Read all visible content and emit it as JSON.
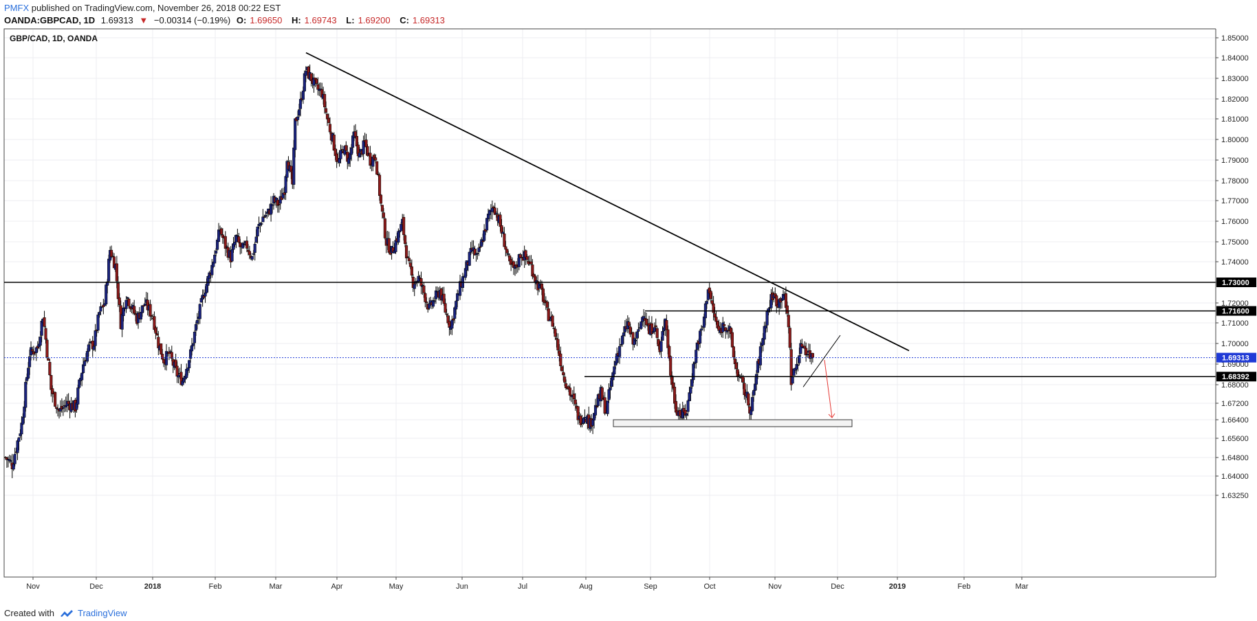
{
  "header": {
    "publisher": "PMFX",
    "published_text": " published on TradingView.com, November 26, 2018 00:22 EST",
    "symbol": "OANDA:GBPCAD, 1D",
    "last": "1.69313",
    "change": "−0.00314 (−0.19%)",
    "o_label": "O:",
    "o_value": "1.69650",
    "h_label": "H:",
    "h_value": "1.69743",
    "l_label": "L:",
    "l_value": "1.69200",
    "c_label": "C:",
    "c_value": "1.69313"
  },
  "footer": {
    "created_with": "Created with",
    "brand": "TradingView"
  },
  "colors": {
    "bull": "#1a237e",
    "bear": "#8b1a1a",
    "current_price": "#1f3ad6",
    "line": "#000000",
    "arrow": "#e53935"
  },
  "chart_data": {
    "type": "candlestick",
    "title": "GBP/CAD, 1D, OANDA",
    "x_ticks": [
      "Nov",
      "Dec",
      "2018",
      "Feb",
      "Mar",
      "Apr",
      "May",
      "Jun",
      "Jul",
      "Aug",
      "Sep",
      "Oct",
      "Nov",
      "Dec",
      "2019",
      "Feb",
      "Mar"
    ],
    "y_ticks": [
      "1.85000",
      "1.84000",
      "1.83000",
      "1.82000",
      "1.81000",
      "1.80000",
      "1.79000",
      "1.78000",
      "1.77000",
      "1.76000",
      "1.75000",
      "1.74000",
      "1.73000",
      "1.72000",
      "1.71000",
      "1.70000",
      "1.69000",
      "1.68000",
      "1.67200",
      "1.66400",
      "1.65600",
      "1.64800",
      "1.64000",
      "1.63250"
    ],
    "ylim": [
      1.63,
      1.852
    ],
    "price_labels": [
      "1.73000",
      "1.71600",
      "1.69313",
      "1.68392"
    ],
    "current_price": 1.69313,
    "grid": true,
    "path": [
      [
        0,
        1.648
      ],
      [
        5,
        1.645
      ],
      [
        12,
        1.662
      ],
      [
        18,
        1.695
      ],
      [
        24,
        1.698
      ],
      [
        28,
        1.714
      ],
      [
        34,
        1.678
      ],
      [
        40,
        1.668
      ],
      [
        46,
        1.672
      ],
      [
        52,
        1.67
      ],
      [
        58,
        1.69
      ],
      [
        62,
        1.698
      ],
      [
        66,
        1.7
      ],
      [
        70,
        1.715
      ],
      [
        74,
        1.72
      ],
      [
        78,
        1.746
      ],
      [
        82,
        1.738
      ],
      [
        86,
        1.71
      ],
      [
        90,
        1.724
      ],
      [
        94,
        1.718
      ],
      [
        98,
        1.712
      ],
      [
        104,
        1.72
      ],
      [
        110,
        1.713
      ],
      [
        114,
        1.7
      ],
      [
        118,
        1.692
      ],
      [
        122,
        1.695
      ],
      [
        128,
        1.685
      ],
      [
        132,
        1.682
      ],
      [
        138,
        1.695
      ],
      [
        142,
        1.708
      ],
      [
        148,
        1.725
      ],
      [
        154,
        1.738
      ],
      [
        160,
        1.756
      ],
      [
        164,
        1.748
      ],
      [
        168,
        1.742
      ],
      [
        172,
        1.752
      ],
      [
        176,
        1.746
      ],
      [
        180,
        1.748
      ],
      [
        184,
        1.742
      ],
      [
        188,
        1.756
      ],
      [
        192,
        1.762
      ],
      [
        196,
        1.764
      ],
      [
        200,
        1.77
      ],
      [
        204,
        1.768
      ],
      [
        208,
        1.776
      ],
      [
        210,
        1.792
      ],
      [
        214,
        1.778
      ],
      [
        216,
        1.808
      ],
      [
        220,
        1.818
      ],
      [
        224,
        1.834
      ],
      [
        228,
        1.83
      ],
      [
        232,
        1.825
      ],
      [
        236,
        1.823
      ],
      [
        240,
        1.81
      ],
      [
        244,
        1.8
      ],
      [
        248,
        1.788
      ],
      [
        252,
        1.796
      ],
      [
        256,
        1.79
      ],
      [
        260,
        1.802
      ],
      [
        264,
        1.792
      ],
      [
        268,
        1.798
      ],
      [
        272,
        1.79
      ],
      [
        276,
        1.792
      ],
      [
        280,
        1.768
      ],
      [
        284,
        1.75
      ],
      [
        288,
        1.745
      ],
      [
        292,
        1.752
      ],
      [
        296,
        1.759
      ],
      [
        300,
        1.74
      ],
      [
        304,
        1.73
      ],
      [
        308,
        1.732
      ],
      [
        312,
        1.725
      ],
      [
        316,
        1.717
      ],
      [
        320,
        1.722
      ],
      [
        324,
        1.726
      ],
      [
        328,
        1.716
      ],
      [
        332,
        1.708
      ],
      [
        336,
        1.72
      ],
      [
        340,
        1.73
      ],
      [
        344,
        1.738
      ],
      [
        348,
        1.746
      ],
      [
        352,
        1.742
      ],
      [
        356,
        1.752
      ],
      [
        360,
        1.762
      ],
      [
        364,
        1.768
      ],
      [
        368,
        1.76
      ],
      [
        372,
        1.75
      ],
      [
        376,
        1.738
      ],
      [
        380,
        1.736
      ],
      [
        384,
        1.744
      ],
      [
        388,
        1.742
      ],
      [
        392,
        1.738
      ],
      [
        396,
        1.73
      ],
      [
        400,
        1.725
      ],
      [
        404,
        1.715
      ],
      [
        408,
        1.71
      ],
      [
        412,
        1.698
      ],
      [
        416,
        1.685
      ],
      [
        420,
        1.678
      ],
      [
        424,
        1.672
      ],
      [
        428,
        1.664
      ],
      [
        432,
        1.667
      ],
      [
        436,
        1.662
      ],
      [
        440,
        1.67
      ],
      [
        444,
        1.676
      ],
      [
        448,
        1.668
      ],
      [
        452,
        1.682
      ],
      [
        456,
        1.695
      ],
      [
        460,
        1.702
      ],
      [
        464,
        1.71
      ],
      [
        468,
        1.7
      ],
      [
        472,
        1.705
      ],
      [
        476,
        1.716
      ],
      [
        480,
        1.705
      ],
      [
        484,
        1.71
      ],
      [
        488,
        1.695
      ],
      [
        492,
        1.714
      ],
      [
        496,
        1.685
      ],
      [
        500,
        1.67
      ],
      [
        504,
        1.666
      ],
      [
        508,
        1.668
      ],
      [
        512,
        1.685
      ],
      [
        516,
        1.7
      ],
      [
        520,
        1.708
      ],
      [
        524,
        1.728
      ],
      [
        528,
        1.715
      ],
      [
        532,
        1.705
      ],
      [
        536,
        1.71
      ],
      [
        540,
        1.706
      ],
      [
        544,
        1.69
      ],
      [
        548,
        1.682
      ],
      [
        552,
        1.676
      ],
      [
        556,
        1.668
      ],
      [
        560,
        1.685
      ],
      [
        564,
        1.7
      ],
      [
        568,
        1.715
      ],
      [
        572,
        1.724
      ],
      [
        576,
        1.72
      ],
      [
        580,
        1.725
      ],
      [
        584,
        1.71
      ],
      [
        586,
        1.682
      ],
      [
        590,
        1.69
      ],
      [
        594,
        1.7
      ],
      [
        598,
        1.696
      ],
      [
        602,
        1.6931
      ]
    ]
  }
}
